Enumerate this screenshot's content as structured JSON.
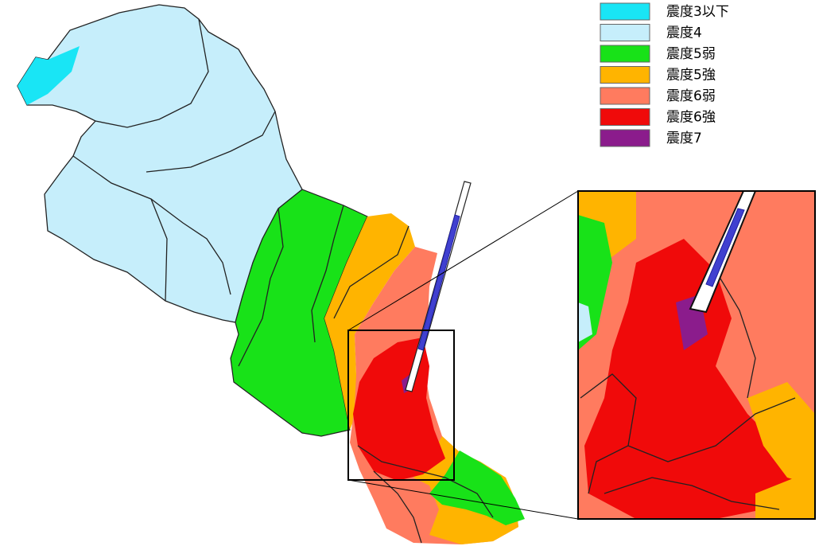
{
  "legend": {
    "items": [
      {
        "label": "震度3以下",
        "color": "#19e5f5"
      },
      {
        "label": "震度4",
        "color": "#c6eefb"
      },
      {
        "label": "震度5弱",
        "color": "#18e218"
      },
      {
        "label": "震度5強",
        "color": "#ffb400"
      },
      {
        "label": "震度6弱",
        "color": "#ff7b5f"
      },
      {
        "label": "震度6強",
        "color": "#f00a0a"
      },
      {
        "label": "震度7",
        "color": "#8b1c8c"
      }
    ]
  }
}
